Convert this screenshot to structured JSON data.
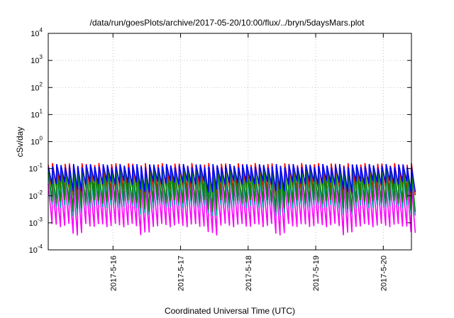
{
  "chart_data": {
    "type": "line",
    "title": "/data/run/goesPlots/archive/2017-05-20/10:00/flux/../bryn/5daysMars.plot",
    "xlabel": "Coordinated Universal Time (UTC)",
    "ylabel": "cSv/day",
    "yscale": "log",
    "ylim": [
      0.0001,
      10000
    ],
    "xlim": [
      "2017-05-15T01:00",
      "2017-05-20T10:00"
    ],
    "grid": true,
    "y_ticks": [
      {
        "value": 0.0001,
        "base": "10",
        "exp": "-4"
      },
      {
        "value": 0.001,
        "base": "10",
        "exp": "-3"
      },
      {
        "value": 0.01,
        "base": "10",
        "exp": "-2"
      },
      {
        "value": 0.1,
        "base": "10",
        "exp": "-1"
      },
      {
        "value": 1,
        "base": "10",
        "exp": "0"
      },
      {
        "value": 10,
        "base": "10",
        "exp": "1"
      },
      {
        "value": 100,
        "base": "10",
        "exp": "2"
      },
      {
        "value": 1000,
        "base": "10",
        "exp": "3"
      },
      {
        "value": 10000,
        "base": "10",
        "exp": "4"
      }
    ],
    "x_ticks": [
      {
        "label": "2017-5-16",
        "date": "2017-05-16T00:00"
      },
      {
        "label": "2017-5-17",
        "date": "2017-05-17T00:00"
      },
      {
        "label": "2017-5-18",
        "date": "2017-05-18T00:00"
      },
      {
        "label": "2017-5-19",
        "date": "2017-05-19T00:00"
      },
      {
        "label": "2017-5-20",
        "date": "2017-05-20T00:00"
      }
    ],
    "series": [
      {
        "color": "#ff0000",
        "peak": 0.14,
        "trough": 0.018
      },
      {
        "color": "#ff00ff",
        "peak": 0.025,
        "trough": 0.0008
      },
      {
        "color": "#00aaaa",
        "peak": 0.06,
        "trough": 0.004
      },
      {
        "color": "#008800",
        "peak": 0.1,
        "trough": 0.006
      },
      {
        "color": "#0000ff",
        "peak": 0.13,
        "trough": 0.03
      }
    ]
  }
}
